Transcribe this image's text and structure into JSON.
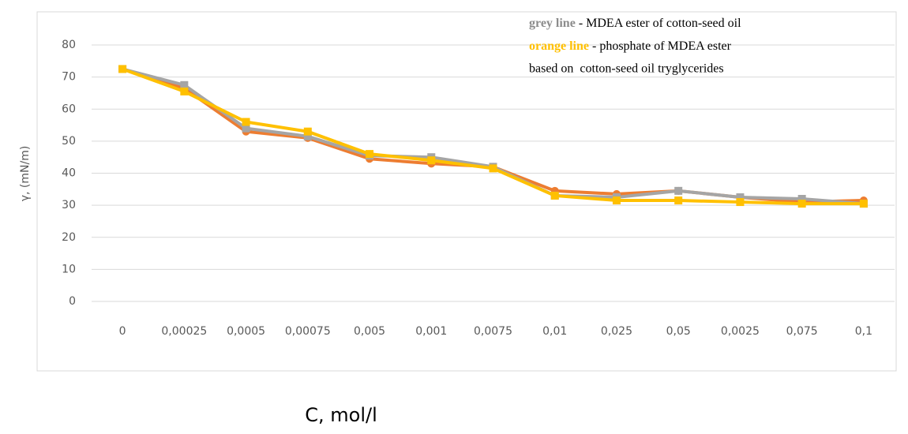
{
  "chart_data": {
    "type": "line",
    "y_label": "γ, (mN/m)",
    "x_label": "C, mol/l",
    "annotation": [
      "grey line",
      " - MDEA ester of cotton-seed oil",
      "orange line",
      " - phosphate of MDEA ester",
      "based on  cotton-seed oil tryglycerides"
    ],
    "categories": [
      "0",
      "0,00025",
      "0,0005",
      "0,00075",
      "0,005",
      "0,001",
      "0,0075",
      "0,01",
      "0,025",
      "0,05",
      "0,0025",
      "0,075",
      "0,1"
    ],
    "series": [
      {
        "color": "#ed7d31",
        "marker": "circle",
        "values": [
          72.5,
          66.5,
          53,
          51,
          44.5,
          43,
          42,
          34.5,
          33.5,
          34.5,
          32.5,
          31,
          31.5
        ]
      },
      {
        "color": "#a5a5a5",
        "marker": "square",
        "values": [
          72.5,
          67.5,
          54,
          51.5,
          45.5,
          45,
          42,
          33,
          32.5,
          34.5,
          32.5,
          32,
          30.5
        ]
      },
      {
        "color": "#ffc000",
        "marker": "square",
        "values": [
          72.5,
          65.5,
          56,
          53,
          46,
          44,
          41.5,
          33,
          31.5,
          31.5,
          31,
          30.5,
          30.5
        ]
      }
    ],
    "ylim": [
      0,
      80
    ],
    "yticks": [
      0,
      10,
      20,
      30,
      40,
      50,
      60,
      70,
      80
    ],
    "grid": true
  }
}
